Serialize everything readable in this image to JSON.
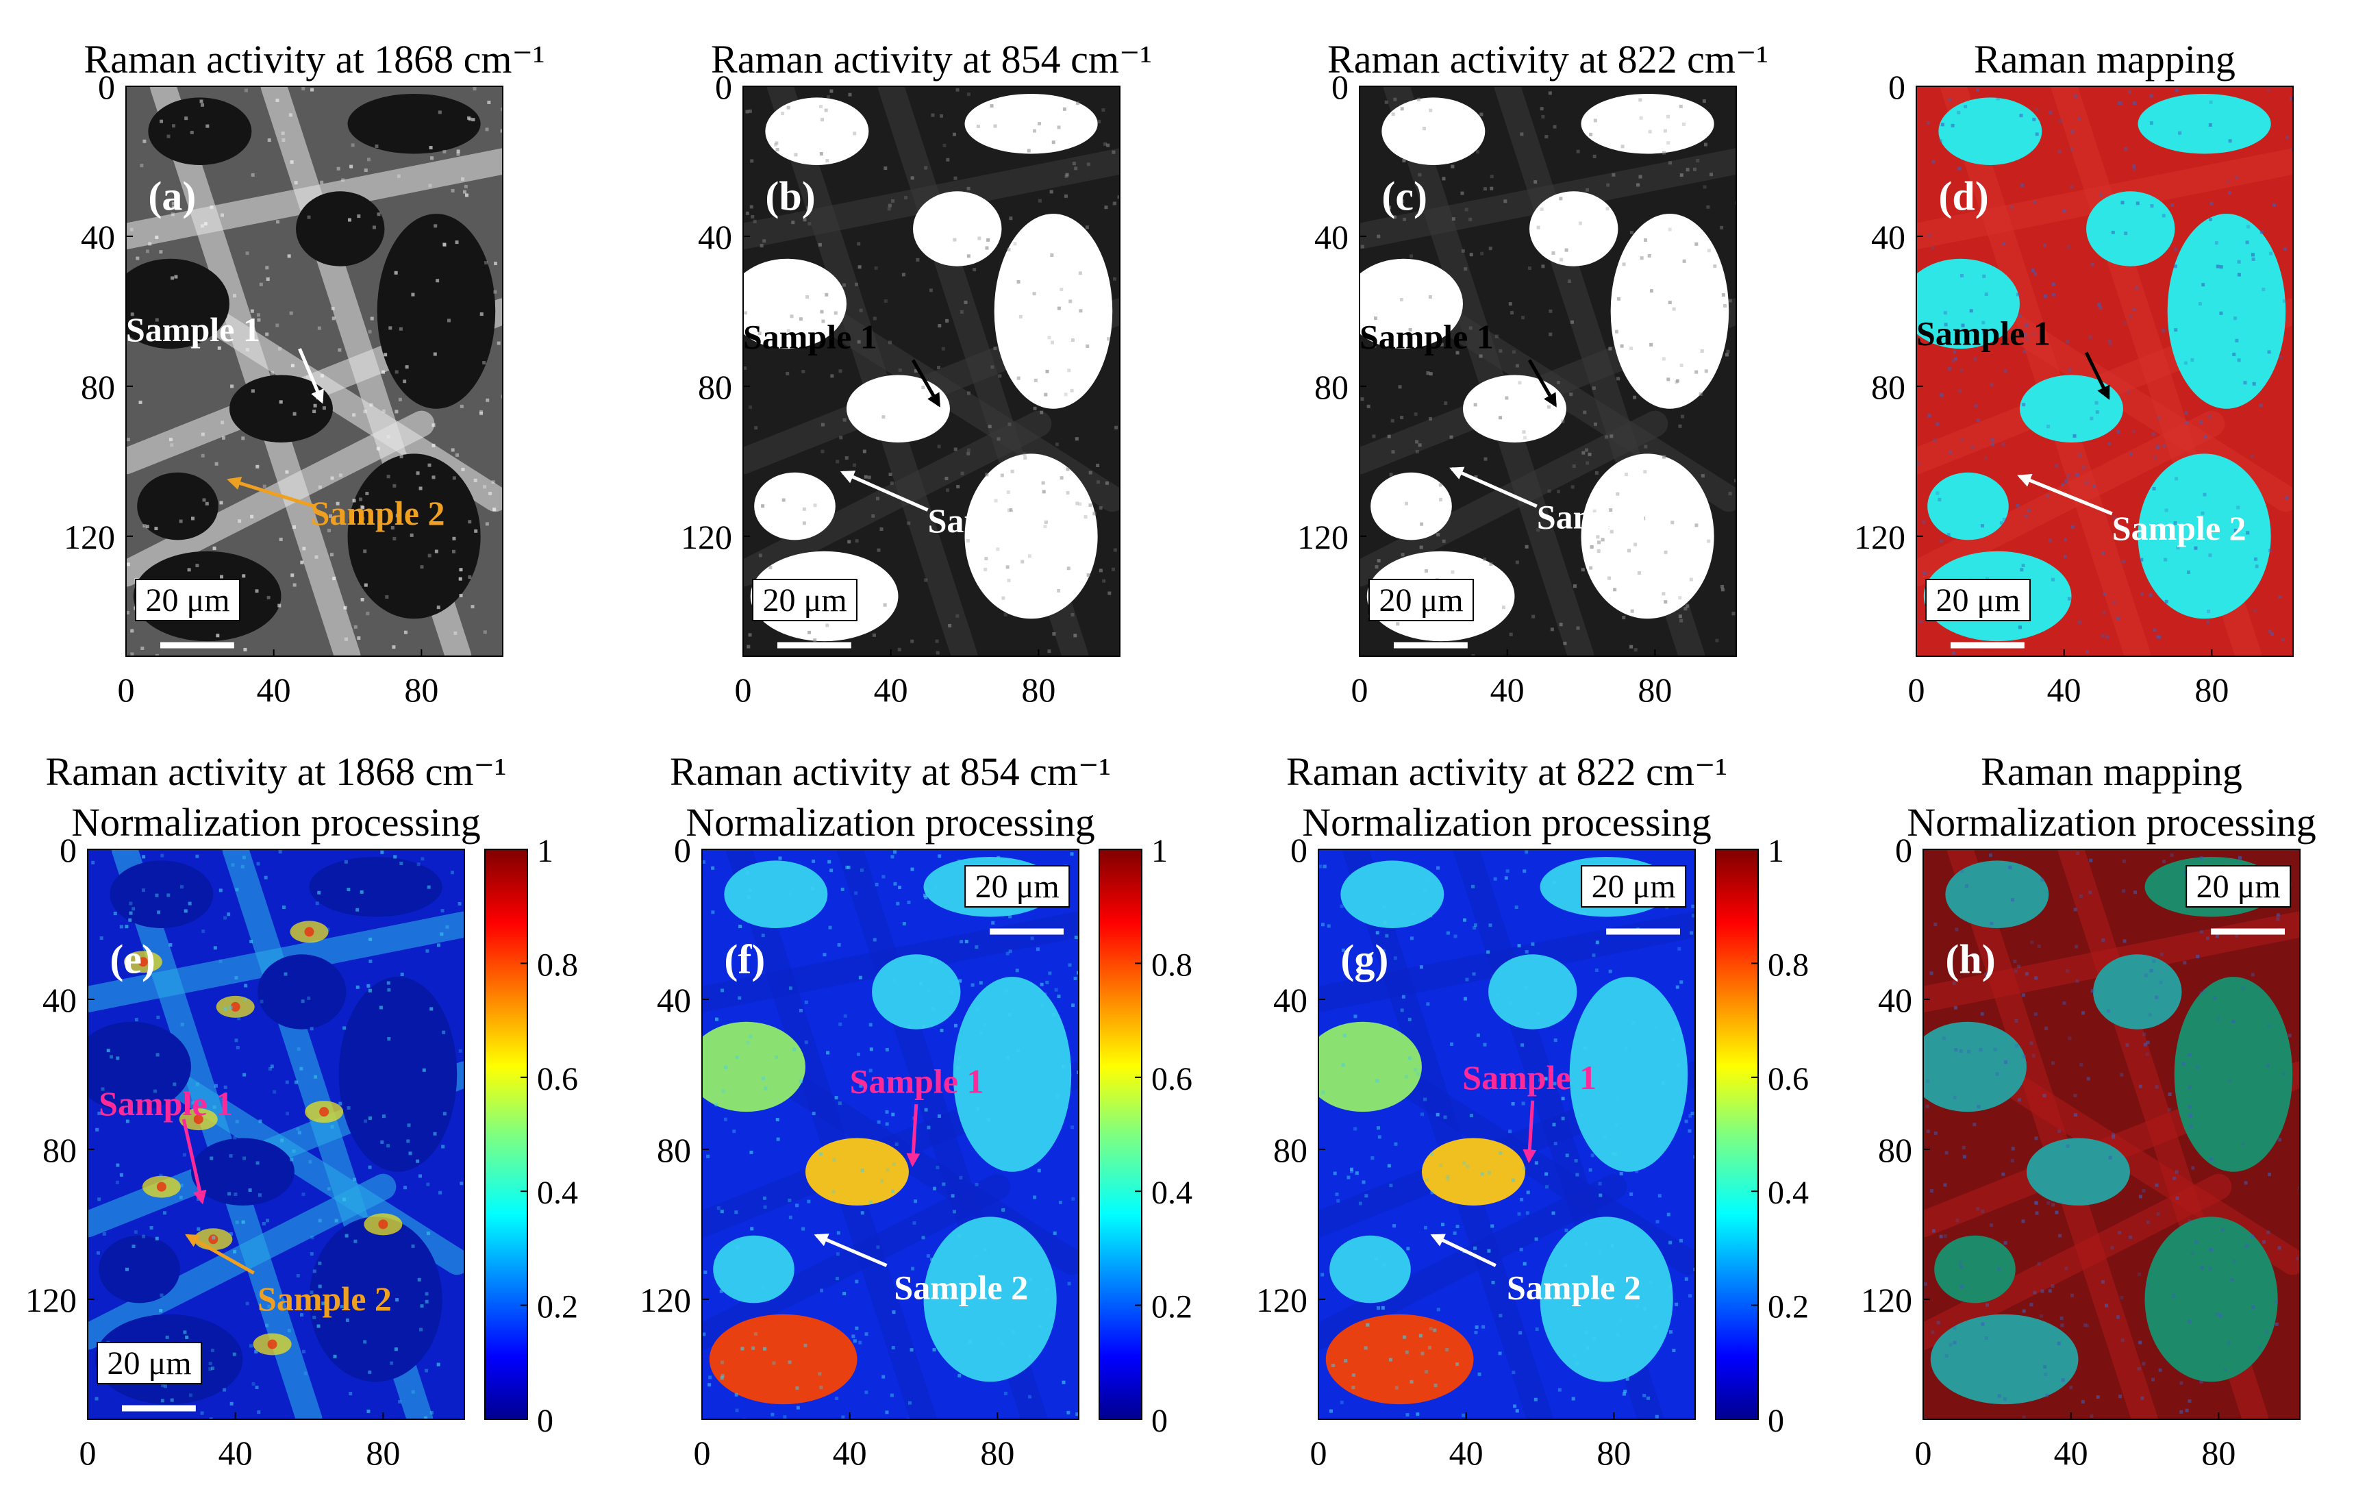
{
  "figure": {
    "colors": {
      "gray_dark": "#141414",
      "gray_mid": "#5a5a5a",
      "gray_light": "#e6e6e6",
      "bw_dark": "#1c1c1c",
      "bw_white": "#ffffff",
      "cyan": "#2ee6e6",
      "red": "#c8201c",
      "red_dark": "#7a1010",
      "teal_dark": "#1d8a6a",
      "jet_low": "#00008f",
      "jet_high": "#800000",
      "arrow_white": "#ffffff",
      "arrow_black": "#000000",
      "arrow_orange": "#f0a020",
      "arrow_magenta": "#ff2a9a"
    }
  },
  "chart_data": [
    {
      "id": "a",
      "type": "heatmap",
      "style": "gray",
      "title_lines": [
        "Raman activity at 1868 cm⁻¹"
      ],
      "panel_label": "(a)",
      "x_ticks": [
        "0",
        "40",
        "80"
      ],
      "x_tick_values": [
        0,
        40,
        80
      ],
      "y_ticks": [
        "0",
        "40",
        "80",
        "120"
      ],
      "y_tick_values": [
        0,
        40,
        80,
        120
      ],
      "xlim": [
        0,
        102
      ],
      "ylim": [
        0,
        152
      ],
      "scale_bar": "20 μm",
      "scale_bar_length_um": 20,
      "scale_bar_position": "bottom-left",
      "label_color": "#ffffff",
      "annotations": [
        {
          "text": "Sample 1",
          "text_color": "#ffffff",
          "arrow_color": "#ffffff",
          "text_at": [
            0,
            65
          ],
          "from": [
            47,
            70
          ],
          "to": [
            53,
            84
          ]
        },
        {
          "text": "Sample 2",
          "text_color": "#f0a020",
          "arrow_color": "#f0a020",
          "text_at": [
            50,
            114
          ],
          "from": [
            51,
            112
          ],
          "to": [
            28,
            105
          ]
        }
      ]
    },
    {
      "id": "b",
      "type": "heatmap",
      "style": "bw",
      "title_lines": [
        "Raman activity at 854 cm⁻¹"
      ],
      "panel_label": "(b)",
      "x_ticks": [
        "0",
        "40",
        "80"
      ],
      "x_tick_values": [
        0,
        40,
        80
      ],
      "y_ticks": [
        "0",
        "40",
        "80",
        "120"
      ],
      "y_tick_values": [
        0,
        40,
        80,
        120
      ],
      "xlim": [
        0,
        102
      ],
      "ylim": [
        0,
        152
      ],
      "scale_bar": "20 μm",
      "scale_bar_length_um": 20,
      "scale_bar_position": "bottom-left",
      "label_color": "#ffffff",
      "annotations": [
        {
          "text": "Sample 1",
          "text_color": "#000000",
          "arrow_color": "#000000",
          "text_at": [
            0,
            67
          ],
          "from": [
            46,
            73
          ],
          "to": [
            53,
            85
          ]
        },
        {
          "text": "Sample 2",
          "text_color": "#ffffff",
          "arrow_color": "#ffffff",
          "text_at": [
            50,
            116
          ],
          "from": [
            50,
            113
          ],
          "to": [
            27,
            103
          ]
        }
      ]
    },
    {
      "id": "c",
      "type": "heatmap",
      "style": "bw",
      "title_lines": [
        "Raman activity at 822 cm⁻¹"
      ],
      "panel_label": "(c)",
      "x_ticks": [
        "0",
        "40",
        "80"
      ],
      "x_tick_values": [
        0,
        40,
        80
      ],
      "y_ticks": [
        "0",
        "40",
        "80",
        "120"
      ],
      "y_tick_values": [
        0,
        40,
        80,
        120
      ],
      "xlim": [
        0,
        102
      ],
      "ylim": [
        0,
        152
      ],
      "scale_bar": "20 μm",
      "scale_bar_length_um": 20,
      "scale_bar_position": "bottom-left",
      "label_color": "#ffffff",
      "annotations": [
        {
          "text": "Sample 1",
          "text_color": "#000000",
          "arrow_color": "#000000",
          "text_at": [
            0,
            67
          ],
          "from": [
            46,
            73
          ],
          "to": [
            53,
            85
          ]
        },
        {
          "text": "Sample 2",
          "text_color": "#ffffff",
          "arrow_color": "#ffffff",
          "text_at": [
            48,
            115
          ],
          "from": [
            48,
            112
          ],
          "to": [
            25,
            102
          ]
        }
      ]
    },
    {
      "id": "d",
      "type": "heatmap",
      "style": "rgb",
      "title_lines": [
        "Raman mapping"
      ],
      "panel_label": "(d)",
      "x_ticks": [
        "0",
        "40",
        "80"
      ],
      "x_tick_values": [
        0,
        40,
        80
      ],
      "y_ticks": [
        "0",
        "40",
        "80",
        "120"
      ],
      "y_tick_values": [
        0,
        40,
        80,
        120
      ],
      "xlim": [
        0,
        102
      ],
      "ylim": [
        0,
        152
      ],
      "scale_bar": "20 μm",
      "scale_bar_length_um": 20,
      "scale_bar_position": "bottom-left",
      "label_color": "#ffffff",
      "annotations": [
        {
          "text": "Sample 1",
          "text_color": "#000000",
          "arrow_color": "#000000",
          "text_at": [
            0,
            66
          ],
          "from": [
            46,
            71
          ],
          "to": [
            52,
            83
          ]
        },
        {
          "text": "Sample 2",
          "text_color": "#ffffff",
          "arrow_color": "#ffffff",
          "text_at": [
            53,
            118
          ],
          "from": [
            53,
            114
          ],
          "to": [
            28,
            104
          ]
        }
      ]
    },
    {
      "id": "e",
      "type": "heatmap",
      "style": "jet-sparse",
      "title_lines": [
        "Raman activity at 1868 cm⁻¹",
        "Normalization processing"
      ],
      "panel_label": "(e)",
      "x_ticks": [
        "0",
        "40",
        "80"
      ],
      "x_tick_values": [
        0,
        40,
        80
      ],
      "y_ticks": [
        "0",
        "40",
        "80",
        "120"
      ],
      "y_tick_values": [
        0,
        40,
        80,
        120
      ],
      "xlim": [
        0,
        102
      ],
      "ylim": [
        0,
        152
      ],
      "scale_bar": "20 μm",
      "scale_bar_length_um": 20,
      "scale_bar_position": "bottom-left",
      "label_color": "#ffffff",
      "colorbar": {
        "ticks": [
          "0",
          "0.2",
          "0.4",
          "0.6",
          "0.8",
          "1"
        ],
        "tick_values": [
          0,
          0.2,
          0.4,
          0.6,
          0.8,
          1
        ],
        "range": [
          0,
          1
        ]
      },
      "annotations": [
        {
          "text": "Sample 1",
          "text_color": "#ff2a9a",
          "arrow_color": "#ff2a9a",
          "text_at": [
            3,
            68
          ],
          "from": [
            26,
            72
          ],
          "to": [
            31,
            94
          ]
        },
        {
          "text": "Sample 2",
          "text_color": "#f0a020",
          "arrow_color": "#f0a020",
          "text_at": [
            46,
            120
          ],
          "from": [
            45,
            113
          ],
          "to": [
            27,
            103
          ]
        }
      ]
    },
    {
      "id": "f",
      "type": "heatmap",
      "style": "jet-pores",
      "title_lines": [
        "Raman activity at 854 cm⁻¹",
        "Normalization processing"
      ],
      "panel_label": "(f)",
      "x_ticks": [
        "0",
        "40",
        "80"
      ],
      "x_tick_values": [
        0,
        40,
        80
      ],
      "y_ticks": [
        "0",
        "40",
        "80",
        "120"
      ],
      "y_tick_values": [
        0,
        40,
        80,
        120
      ],
      "xlim": [
        0,
        102
      ],
      "ylim": [
        0,
        152
      ],
      "scale_bar": "20 μm",
      "scale_bar_length_um": 20,
      "scale_bar_position": "top-right",
      "label_color": "#ffffff",
      "colorbar": {
        "ticks": [
          "0",
          "0.2",
          "0.4",
          "0.6",
          "0.8",
          "1"
        ],
        "tick_values": [
          0,
          0.2,
          0.4,
          0.6,
          0.8,
          1
        ],
        "range": [
          0,
          1
        ]
      },
      "annotations": [
        {
          "text": "Sample 1",
          "text_color": "#ff2a9a",
          "arrow_color": "#ff2a9a",
          "text_at": [
            40,
            62
          ],
          "from": [
            58,
            68
          ],
          "to": [
            57,
            84
          ]
        },
        {
          "text": "Sample 2",
          "text_color": "#ffffff",
          "arrow_color": "#ffffff",
          "text_at": [
            52,
            117
          ],
          "from": [
            50,
            111
          ],
          "to": [
            31,
            103
          ]
        }
      ]
    },
    {
      "id": "g",
      "type": "heatmap",
      "style": "jet-pores",
      "title_lines": [
        "Raman activity at 822 cm⁻¹",
        "Normalization processing"
      ],
      "panel_label": "(g)",
      "x_ticks": [
        "0",
        "40",
        "80"
      ],
      "x_tick_values": [
        0,
        40,
        80
      ],
      "y_ticks": [
        "0",
        "40",
        "80",
        "120"
      ],
      "y_tick_values": [
        0,
        40,
        80,
        120
      ],
      "xlim": [
        0,
        102
      ],
      "ylim": [
        0,
        152
      ],
      "scale_bar": "20 μm",
      "scale_bar_length_um": 20,
      "scale_bar_position": "top-right",
      "label_color": "#ffffff",
      "colorbar": {
        "ticks": [
          "0",
          "0.2",
          "0.4",
          "0.6",
          "0.8",
          "1"
        ],
        "tick_values": [
          0,
          0.2,
          0.4,
          0.6,
          0.8,
          1
        ],
        "range": [
          0,
          1
        ]
      },
      "annotations": [
        {
          "text": "Sample 1",
          "text_color": "#ff2a9a",
          "arrow_color": "#ff2a9a",
          "text_at": [
            39,
            61
          ],
          "from": [
            58,
            67
          ],
          "to": [
            57,
            83
          ]
        },
        {
          "text": "Sample 2",
          "text_color": "#ffffff",
          "arrow_color": "#ffffff",
          "text_at": [
            51,
            117
          ],
          "from": [
            48,
            111
          ],
          "to": [
            31,
            103
          ]
        }
      ]
    },
    {
      "id": "h",
      "type": "heatmap",
      "style": "rgb-dark",
      "title_lines": [
        "Raman mapping",
        "Normalization processing"
      ],
      "panel_label": "(h)",
      "x_ticks": [
        "0",
        "40",
        "80"
      ],
      "x_tick_values": [
        0,
        40,
        80
      ],
      "y_ticks": [
        "0",
        "40",
        "80",
        "120"
      ],
      "y_tick_values": [
        0,
        40,
        80,
        120
      ],
      "xlim": [
        0,
        102
      ],
      "ylim": [
        0,
        152
      ],
      "scale_bar": "20 μm",
      "scale_bar_length_um": 20,
      "scale_bar_position": "top-right",
      "label_color": "#ffffff",
      "annotations": []
    }
  ]
}
